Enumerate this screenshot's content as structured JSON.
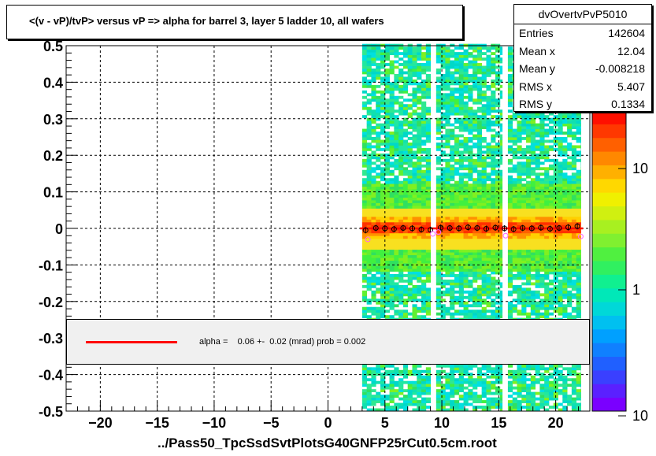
{
  "title": "<(v - vP)/tvP> versus   vP => alpha for barrel 3, layer 5 ladder 10, all wafers",
  "x_title": "../Pass50_TpcSsdSvtPlotsG40GNFP25rCut0.5cm.root",
  "stats": {
    "name": "dvOvertvPvP5010",
    "rows": [
      {
        "label": "Entries",
        "value": "142604"
      },
      {
        "label": "Mean x",
        "value": "12.04"
      },
      {
        "label": "Mean y",
        "value": "-0.008218"
      },
      {
        "label": "RMS x",
        "value": "5.407"
      },
      {
        "label": "RMS y",
        "value": "0.1334"
      }
    ]
  },
  "fit_legend": {
    "text": "alpha =    0.06 +-  0.02 (mrad) prob = 0.002",
    "line_color": "#ff0000"
  },
  "chart_data": {
    "type": "heatmap",
    "xlim": [
      -23,
      23
    ],
    "ylim": [
      -0.5,
      0.5
    ],
    "x_ticks": [
      -20,
      -15,
      -10,
      -5,
      0,
      5,
      10,
      15,
      20
    ],
    "y_ticks": [
      -0.5,
      -0.4,
      -0.3,
      -0.2,
      -0.1,
      0,
      0.1,
      0.2,
      0.3,
      0.4,
      0.5
    ],
    "x_tick_labels": [
      "−20",
      "−15",
      "−10",
      "−5",
      "0",
      "5",
      "10",
      "15",
      "20"
    ],
    "y_tick_labels": [
      "-0.5",
      "-0.4",
      "-0.3",
      "-0.2",
      "-0.1",
      "0",
      "0.1",
      "0.2",
      "0.3",
      "0.4",
      "0.5"
    ],
    "grid": true,
    "z_scale": "log",
    "z_tick_labels": [
      "1",
      "10"
    ],
    "z_corner_label": "10",
    "occupied_x_ranges": [
      [
        3,
        9
      ],
      [
        9.5,
        15.3
      ],
      [
        15.8,
        22.2
      ]
    ],
    "core_halfwidth_y": 0.03,
    "profile_points": {
      "x": [
        3.3,
        4.2,
        5.0,
        5.8,
        6.6,
        7.4,
        8.2,
        9.0,
        9.9,
        10.7,
        11.5,
        12.3,
        13.1,
        13.9,
        14.7,
        15.5,
        16.3,
        17.1,
        17.9,
        18.7,
        19.5,
        20.3,
        21.1,
        21.9
      ],
      "y": [
        -0.005,
        0.001,
        0.0,
        -0.002,
        0.001,
        0.0,
        -0.003,
        -0.004,
        0.002,
        0.001,
        0.0,
        0.003,
        0.001,
        -0.001,
        0.002,
        0.0,
        -0.002,
        0.001,
        0.0,
        0.002,
        -0.001,
        0.001,
        0.003,
        0.006
      ]
    },
    "secondary_points": {
      "x": [
        3.5,
        9.2,
        9.7,
        15.6,
        22.2
      ],
      "y": [
        -0.03,
        -0.015,
        -0.01,
        -0.02,
        -0.022
      ]
    },
    "fit_line": {
      "x": [
        2.8,
        22.4
      ],
      "y": [
        0.0,
        0.0
      ]
    }
  }
}
